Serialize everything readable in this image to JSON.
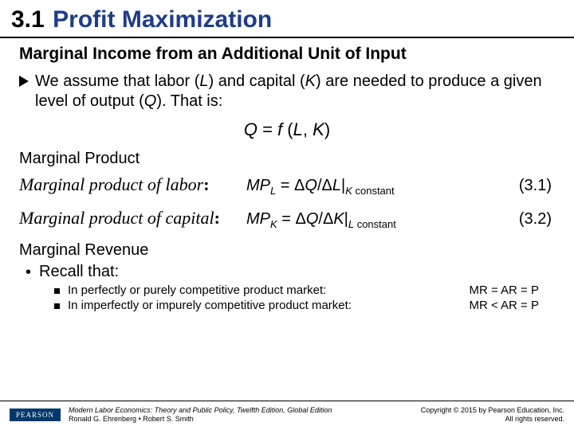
{
  "header": {
    "section_number": "3.1",
    "section_title": "Profit Maximization"
  },
  "subheading": "Marginal Income from an Additional Unit of Input",
  "assumption": {
    "text_before": "We assume that labor (",
    "var_L": "L",
    "text_mid1": ") and capital (",
    "var_K": "K",
    "text_mid2": ") are needed to produce a given level of output (",
    "var_Q": "Q",
    "text_after": "). That is:"
  },
  "production_fn": {
    "Q": "Q",
    "eq": " = ",
    "f": "f",
    "open": " (",
    "L": "L",
    "comma": ", ",
    "K": "K",
    "close": ")"
  },
  "mp_heading": "Marginal Product",
  "mp_labor": {
    "label": "Marginal product of labor",
    "colon": ":",
    "lhs": "MP",
    "lhs_sub": "L",
    "eq": "  =  Δ",
    "Qv": "Q",
    "slash": "/Δ",
    "Lv": "L",
    "bar": "|",
    "cond_sub": "K",
    "cond_txt": " constant",
    "num": "(3.1)"
  },
  "mp_capital": {
    "label": "Marginal product of capital",
    "colon": ":",
    "lhs": "MP",
    "lhs_sub": "K",
    "eq": " =  Δ",
    "Qv": "Q",
    "slash": "/Δ",
    "Kv": "K",
    "bar": "|",
    "cond_sub": "L",
    "cond_txt": " constant",
    "num": "(3.2)"
  },
  "mr_heading": "Marginal Revenue",
  "recall": "Recall that:",
  "mr_rows": [
    {
      "left": "In perfectly or purely competitive product market:",
      "right": "MR = AR = P"
    },
    {
      "left": "In imperfectly or impurely competitive product market:",
      "right": "MR < AR = P"
    }
  ],
  "footer": {
    "logo": "PEARSON",
    "book_title": "Modern Labor Economics: Theory and Public Policy, Twelfth Edition, Global Edition",
    "authors": "Ronald G. Ehrenberg • Robert S. Smith",
    "copyright_line1": "Copyright © 2015 by Pearson Education, Inc.",
    "copyright_line2": "All rights reserved."
  }
}
